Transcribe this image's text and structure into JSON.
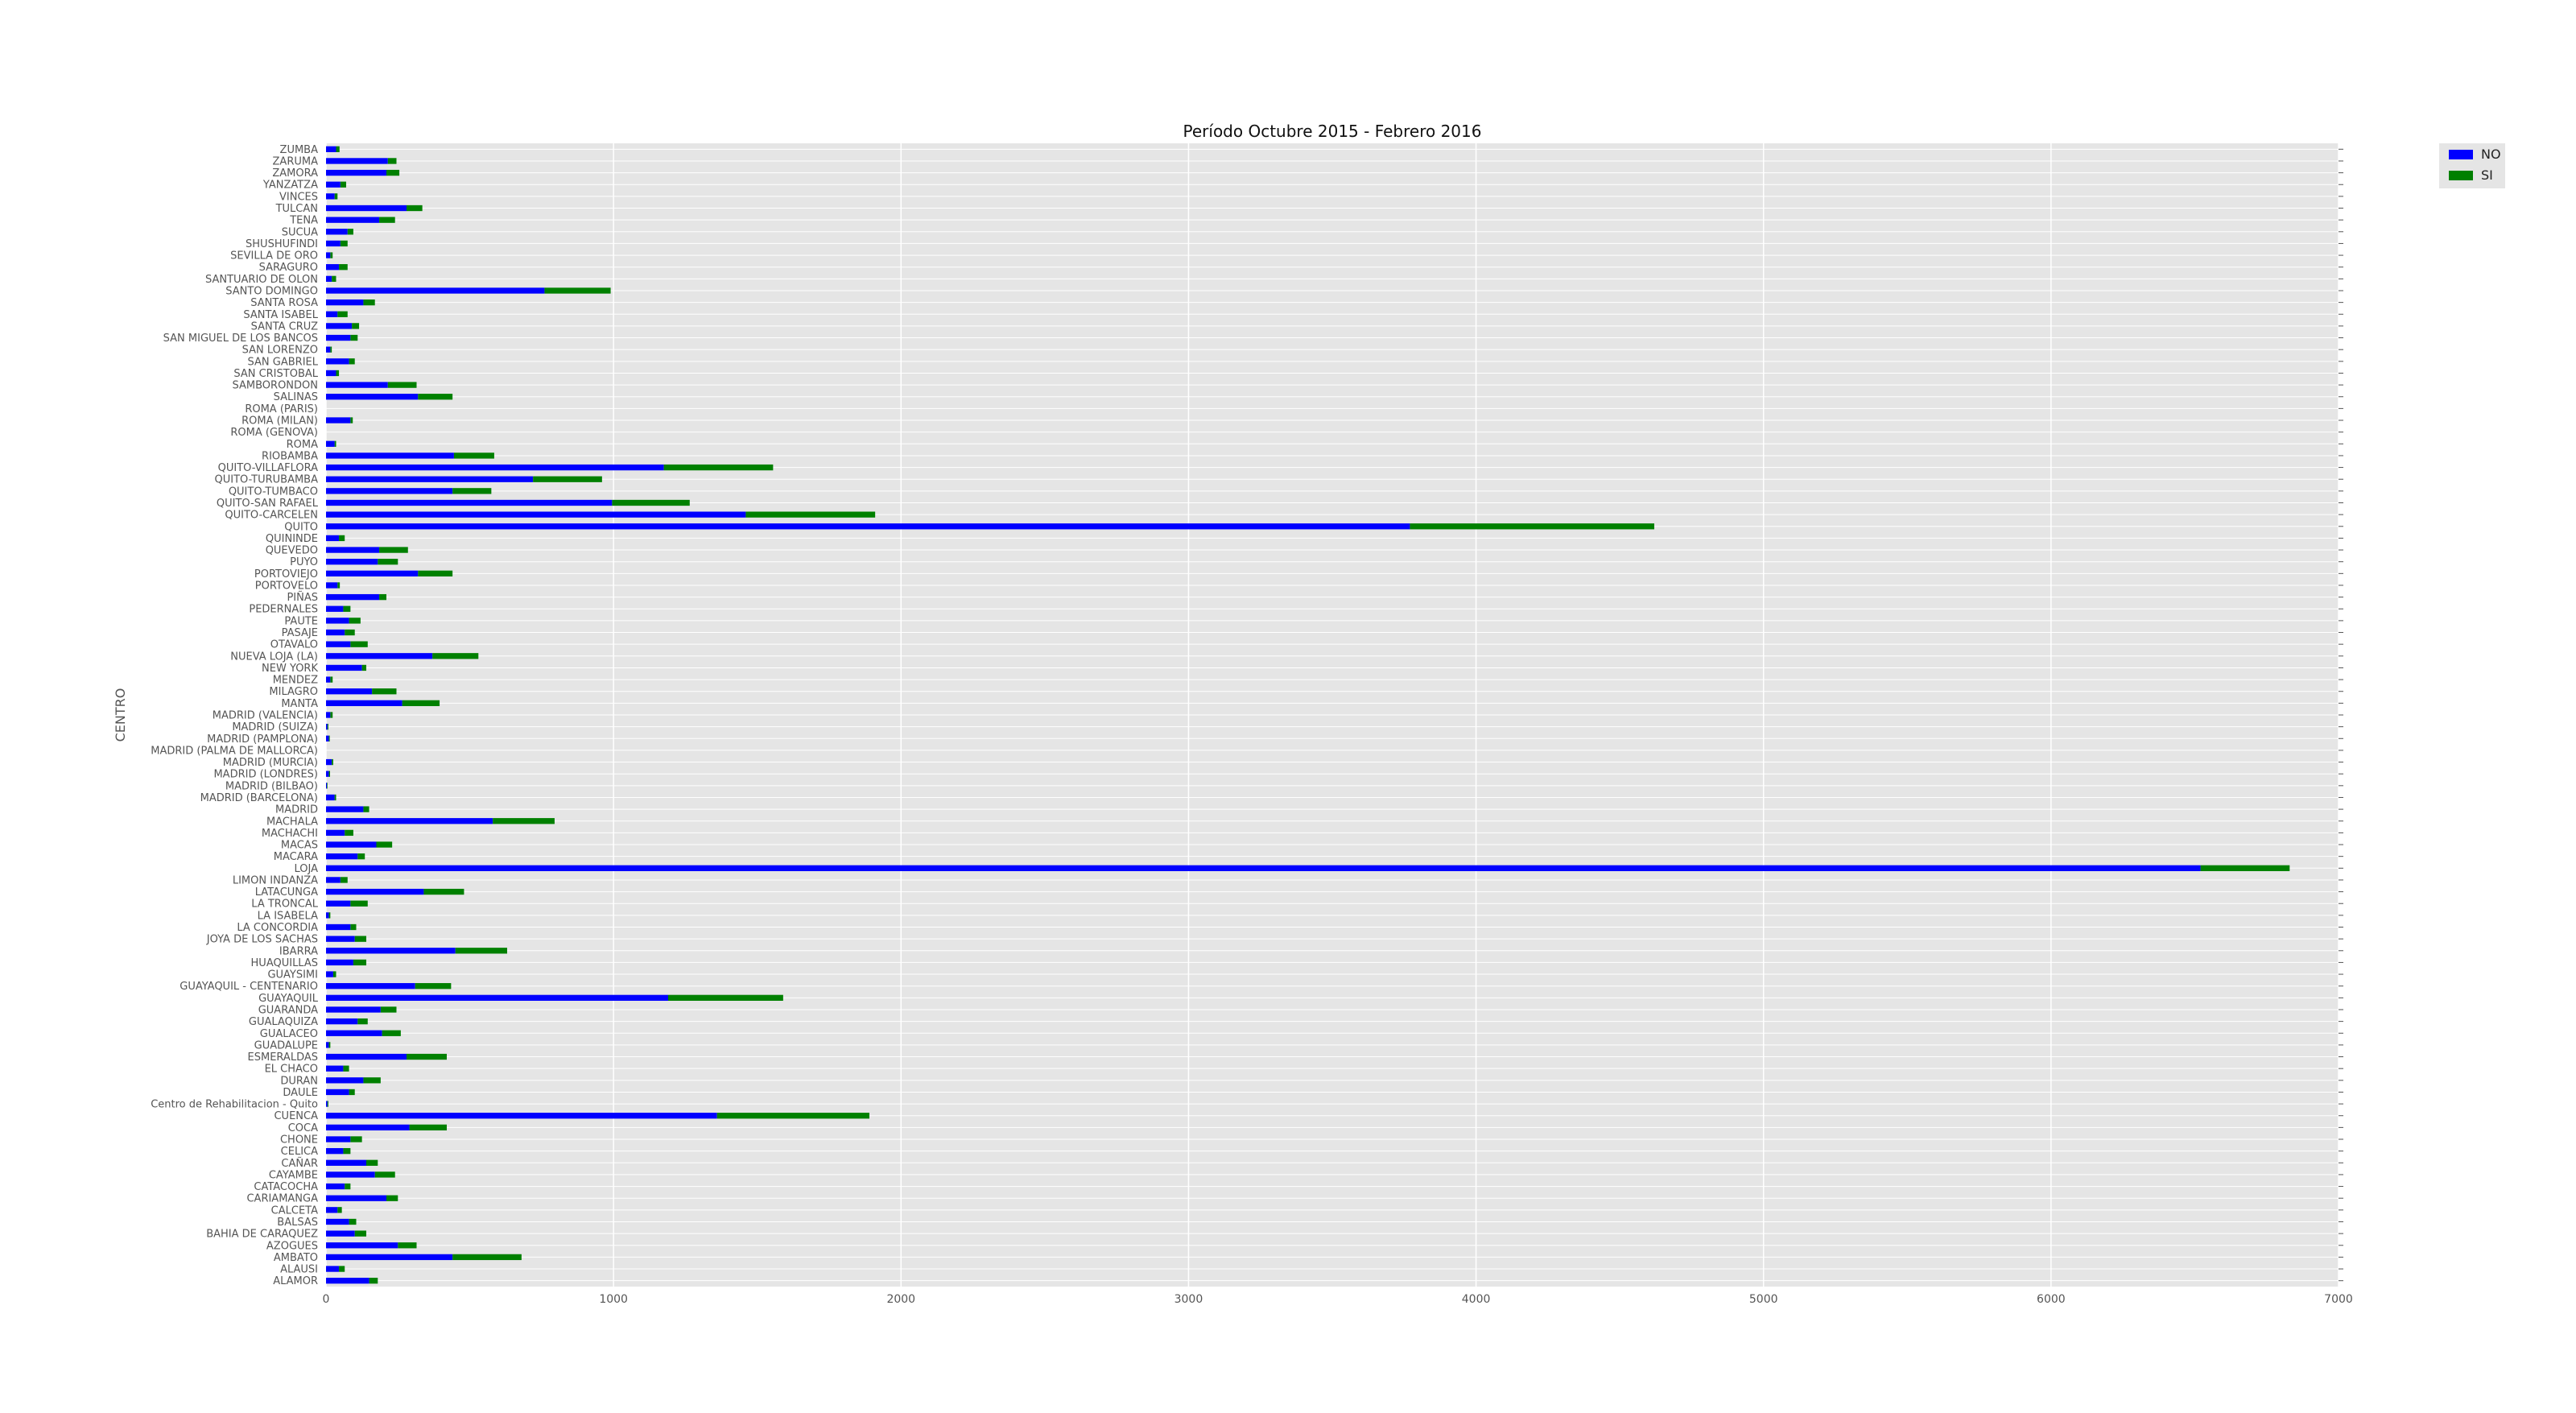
{
  "chart_data": {
    "type": "bar",
    "orientation": "horizontal",
    "stacked": true,
    "title": "Período Octubre 2015 - Febrero 2016",
    "ylabel": "CENTRO",
    "xlabel": "",
    "xlim": [
      0,
      7000
    ],
    "xticks": [
      0,
      1000,
      2000,
      3000,
      4000,
      5000,
      6000,
      7000
    ],
    "grid": true,
    "legend_position": "top-right",
    "categories": [
      "ZUMBA",
      "ZARUMA",
      "ZAMORA",
      "YANZATZA",
      "VINCES",
      "TULCAN",
      "TENA",
      "SUCUA",
      "SHUSHUFINDI",
      "SEVILLA DE ORO",
      "SARAGURO",
      "SANTUARIO DE OLON",
      "SANTO DOMINGO",
      "SANTA ROSA",
      "SANTA ISABEL",
      "SANTA CRUZ",
      "SAN MIGUEL DE LOS BANCOS",
      "SAN LORENZO",
      "SAN GABRIEL",
      "SAN CRISTOBAL",
      "SAMBORONDON",
      "SALINAS",
      "ROMA (PARIS)",
      "ROMA (MILAN)",
      "ROMA (GENOVA)",
      "ROMA",
      "RIOBAMBA",
      "QUITO-VILLAFLORA",
      "QUITO-TURUBAMBA",
      "QUITO-TUMBACO",
      "QUITO-SAN RAFAEL",
      "QUITO-CARCELEN",
      "QUITO",
      "QUININDE",
      "QUEVEDO",
      "PUYO",
      "PORTOVIEJO",
      "PORTOVELO",
      "PIÑAS",
      "PEDERNALES",
      "PAUTE",
      "PASAJE",
      "OTAVALO",
      "NUEVA LOJA (LA)",
      "NEW YORK",
      "MENDEZ",
      "MILAGRO",
      "MANTA",
      "MADRID (VALENCIA)",
      "MADRID (SUIZA)",
      "MADRID (PAMPLONA)",
      "MADRID (PALMA DE MALLORCA)",
      "MADRID (MURCIA)",
      "MADRID (LONDRES)",
      "MADRID (BILBAO)",
      "MADRID (BARCELONA)",
      "MADRID",
      "MACHALA",
      "MACHACHI",
      "MACAS",
      "MACARA",
      "LOJA",
      "LIMON INDANZA",
      "LATACUNGA",
      "LA TRONCAL",
      "LA ISABELA",
      "LA CONCORDIA",
      "JOYA DE LOS SACHAS",
      "IBARRA",
      "HUAQUILLAS",
      "GUAYSIMI",
      "GUAYAQUIL - CENTENARIO",
      "GUAYAQUIL",
      "GUARANDA",
      "GUALAQUIZA",
      "GUALACEO",
      "GUADALUPE",
      "ESMERALDAS",
      "EL CHACO",
      "DURAN",
      "DAULE",
      "Centro de Rehabilitacion - Quito",
      "CUENCA",
      "COCA",
      "CHONE",
      "CELICA",
      "CAÑAR",
      "CAYAMBE",
      "CATACOCHA",
      "CARIAMANGA",
      "CALCETA",
      "BALSAS",
      "BAHIA DE CARAQUEZ",
      "AZOGUES",
      "AMBATO",
      "ALAUSI",
      "ALAMOR"
    ],
    "series": [
      {
        "name": "NO",
        "color": "#0000ff",
        "values": [
          35,
          215,
          210,
          50,
          30,
          280,
          185,
          75,
          50,
          15,
          45,
          20,
          760,
          130,
          40,
          90,
          85,
          15,
          80,
          35,
          215,
          320,
          0,
          85,
          0,
          30,
          445,
          1175,
          720,
          440,
          995,
          1460,
          3770,
          45,
          185,
          180,
          320,
          40,
          185,
          60,
          80,
          65,
          85,
          370,
          125,
          15,
          160,
          265,
          15,
          5,
          10,
          0,
          20,
          10,
          3,
          30,
          130,
          580,
          65,
          175,
          110,
          6520,
          50,
          340,
          85,
          10,
          85,
          100,
          450,
          95,
          25,
          310,
          1190,
          190,
          110,
          195,
          10,
          280,
          60,
          130,
          80,
          5,
          1360,
          290,
          85,
          60,
          140,
          170,
          65,
          210,
          40,
          80,
          100,
          250,
          440,
          45,
          150
        ]
      },
      {
        "name": "SI",
        "color": "#008000",
        "values": [
          12,
          30,
          45,
          20,
          10,
          55,
          55,
          20,
          25,
          8,
          30,
          15,
          230,
          40,
          35,
          25,
          25,
          5,
          20,
          10,
          100,
          120,
          0,
          8,
          0,
          5,
          140,
          380,
          240,
          135,
          270,
          450,
          850,
          20,
          100,
          70,
          120,
          8,
          25,
          25,
          40,
          35,
          60,
          160,
          15,
          8,
          85,
          130,
          8,
          3,
          3,
          0,
          5,
          4,
          2,
          5,
          20,
          215,
          30,
          55,
          25,
          310,
          25,
          140,
          60,
          5,
          20,
          40,
          180,
          45,
          10,
          125,
          400,
          55,
          35,
          65,
          5,
          140,
          20,
          60,
          20,
          3,
          530,
          130,
          40,
          25,
          40,
          70,
          20,
          40,
          15,
          25,
          40,
          65,
          240,
          20,
          30
        ]
      }
    ]
  }
}
